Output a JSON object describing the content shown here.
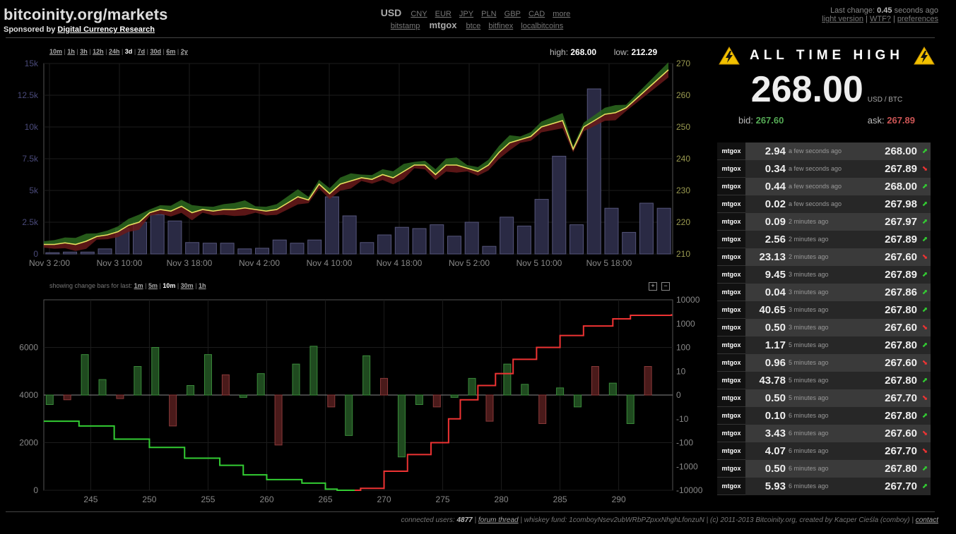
{
  "header": {
    "title": "bitcoinity.org/markets",
    "sponsor_prefix": "Sponsored by",
    "sponsor_link": "Digital Currency Research"
  },
  "currency": {
    "selected": "USD",
    "others": [
      "CNY",
      "EUR",
      "JPY",
      "PLN",
      "GBP",
      "CAD",
      "more"
    ],
    "exchanges": [
      "bitstamp",
      "mtgox",
      "btce",
      "bitfinex",
      "localbitcoins"
    ],
    "selected_exchange": "mtgox"
  },
  "status": {
    "last_change_label": "Last change:",
    "last_change_value": "0.45",
    "last_change_suffix": "seconds ago",
    "links": [
      "light version",
      "WTF?",
      "preferences"
    ]
  },
  "price_chart": {
    "ranges": [
      "10m",
      "1h",
      "3h",
      "12h",
      "24h",
      "3d",
      "7d",
      "30d",
      "6m",
      "2y"
    ],
    "selected_range": "3d",
    "high_label": "high:",
    "high_value": "268.00",
    "low_label": "low:",
    "low_value": "212.29"
  },
  "change_bars": {
    "label": "showing change bars for last:",
    "options": [
      "1m",
      "5m",
      "10m",
      "30m",
      "1h"
    ],
    "selected": "10m",
    "zoom_in": "+",
    "zoom_out": "−"
  },
  "chart_data": [
    {
      "type": "line",
      "x_ticks": [
        "Nov 3 2:00",
        "Nov 3 10:00",
        "Nov 3 18:00",
        "Nov 4 2:00",
        "Nov 4 10:00",
        "Nov 4 18:00",
        "Nov 5 2:00",
        "Nov 5 10:00",
        "Nov 5 18:00"
      ],
      "y_left_ticks": [
        "0",
        "2.5k",
        "5k",
        "7.5k",
        "10k",
        "12.5k",
        "15k"
      ],
      "y_right_ticks": [
        "210",
        "220",
        "230",
        "240",
        "250",
        "260",
        "270"
      ],
      "ylim_right": [
        210,
        270
      ],
      "ylim_left": [
        0,
        15000
      ],
      "grid": true,
      "series": [
        {
          "values": [
            213,
            213,
            213.5,
            213,
            214,
            215.5,
            216,
            217,
            219,
            220,
            223,
            224,
            223.5,
            225,
            223,
            224,
            223.5,
            224,
            224,
            224.5,
            224,
            223.5,
            224,
            226,
            228,
            227,
            232,
            229,
            232,
            233,
            234,
            233.5,
            235,
            234,
            236,
            238,
            238,
            235,
            238,
            238,
            237,
            236,
            238,
            242,
            245,
            246,
            247,
            250,
            251,
            252,
            243,
            250,
            252,
            254,
            254.5,
            256,
            259,
            262,
            265,
            268
          ]
        },
        {
          "values": [
            100,
            150,
            150,
            400,
            2000,
            2500,
            3100,
            2600,
            900,
            850,
            850,
            400,
            450,
            1100,
            850,
            1100,
            4500,
            3000,
            900,
            1500,
            2100,
            2000,
            2300,
            1400,
            2500,
            600,
            2900,
            2200,
            4300,
            7700,
            2300,
            13000,
            3600,
            1700,
            4000,
            3600
          ]
        }
      ]
    },
    {
      "type": "bar",
      "x_ticks": [
        "245",
        "250",
        "255",
        "260",
        "265",
        "270",
        "275",
        "280",
        "285",
        "290"
      ],
      "y_left_ticks": [
        "0",
        "2000",
        "4000",
        "6000"
      ],
      "y_right_ticks": [
        "10000",
        "1000",
        "100",
        "10",
        "0",
        "-10",
        "-100",
        "-1000",
        "-10000"
      ],
      "grid": true,
      "series": [
        {
          "x": [
            241.5,
            243,
            244.5,
            246,
            247.5,
            249,
            250.5,
            252,
            253.5,
            255,
            256.5,
            258,
            259.5,
            261,
            262.5,
            264,
            265.5,
            267,
            268.5,
            270,
            271.5,
            273,
            274.5,
            276,
            277.5,
            279,
            280.5,
            282,
            283.5,
            285,
            286.5,
            288,
            289.5,
            291,
            292.5
          ],
          "values": [
            -400,
            -200,
            1700,
            650,
            -150,
            1200,
            2000,
            -1300,
            400,
            1700,
            850,
            -100,
            900,
            -2100,
            1300,
            2050,
            -500,
            -1700,
            1650,
            700,
            -2600,
            -400,
            -500,
            -100,
            700,
            -1100,
            1300,
            450,
            -1200,
            300,
            -500,
            1200,
            500,
            -1200,
            1200
          ]
        },
        {
          "x": [
            241,
            244,
            247,
            250,
            253,
            256,
            258,
            260,
            263,
            265,
            266,
            267.5,
            268,
            270,
            272,
            274,
            275.5,
            276.5,
            278,
            279.5,
            281,
            283,
            285,
            287,
            289.5,
            291,
            294.5
          ],
          "values": [
            2900,
            2700,
            2150,
            1800,
            1350,
            1050,
            650,
            450,
            300,
            50,
            0,
            0,
            80,
            800,
            1500,
            2000,
            3000,
            3800,
            4400,
            4900,
            5500,
            6000,
            6500,
            6900,
            7200,
            7350,
            7400
          ]
        }
      ]
    }
  ],
  "all_time_high": {
    "heading": "ALL TIME HIGH",
    "price": "268.00",
    "unit": "USD / BTC",
    "bid_label": "bid:",
    "bid_value": "267.60",
    "ask_label": "ask:",
    "ask_value": "267.89",
    "accent_bid": "#5a5",
    "accent_ask": "#c55"
  },
  "trades": [
    {
      "exchange": "mtgox",
      "amount": "2.94",
      "time": "a few seconds ago",
      "price": "268.00",
      "direction": "up"
    },
    {
      "exchange": "mtgox",
      "amount": "0.34",
      "time": "a few seconds ago",
      "price": "267.89",
      "direction": "down"
    },
    {
      "exchange": "mtgox",
      "amount": "0.44",
      "time": "a few seconds ago",
      "price": "268.00",
      "direction": "up"
    },
    {
      "exchange": "mtgox",
      "amount": "0.02",
      "time": "a few seconds ago",
      "price": "267.98",
      "direction": "up"
    },
    {
      "exchange": "mtgox",
      "amount": "0.09",
      "time": "2 minutes ago",
      "price": "267.97",
      "direction": "up"
    },
    {
      "exchange": "mtgox",
      "amount": "2.56",
      "time": "2 minutes ago",
      "price": "267.89",
      "direction": "up"
    },
    {
      "exchange": "mtgox",
      "amount": "23.13",
      "time": "2 minutes ago",
      "price": "267.60",
      "direction": "down"
    },
    {
      "exchange": "mtgox",
      "amount": "9.45",
      "time": "3 minutes ago",
      "price": "267.89",
      "direction": "up"
    },
    {
      "exchange": "mtgox",
      "amount": "0.04",
      "time": "3 minutes ago",
      "price": "267.86",
      "direction": "up"
    },
    {
      "exchange": "mtgox",
      "amount": "40.65",
      "time": "3 minutes ago",
      "price": "267.80",
      "direction": "up"
    },
    {
      "exchange": "mtgox",
      "amount": "0.50",
      "time": "3 minutes ago",
      "price": "267.60",
      "direction": "down"
    },
    {
      "exchange": "mtgox",
      "amount": "1.17",
      "time": "5 minutes ago",
      "price": "267.80",
      "direction": "up"
    },
    {
      "exchange": "mtgox",
      "amount": "0.96",
      "time": "5 minutes ago",
      "price": "267.60",
      "direction": "down"
    },
    {
      "exchange": "mtgox",
      "amount": "43.78",
      "time": "5 minutes ago",
      "price": "267.80",
      "direction": "up"
    },
    {
      "exchange": "mtgox",
      "amount": "0.50",
      "time": "5 minutes ago",
      "price": "267.70",
      "direction": "down"
    },
    {
      "exchange": "mtgox",
      "amount": "0.10",
      "time": "6 minutes ago",
      "price": "267.80",
      "direction": "up"
    },
    {
      "exchange": "mtgox",
      "amount": "3.43",
      "time": "6 minutes ago",
      "price": "267.60",
      "direction": "down"
    },
    {
      "exchange": "mtgox",
      "amount": "4.07",
      "time": "6 minutes ago",
      "price": "267.70",
      "direction": "down"
    },
    {
      "exchange": "mtgox",
      "amount": "0.50",
      "time": "6 minutes ago",
      "price": "267.80",
      "direction": "up"
    },
    {
      "exchange": "mtgox",
      "amount": "5.93",
      "time": "6 minutes ago",
      "price": "267.70",
      "direction": "up"
    }
  ],
  "footer": {
    "users_label": "connected users:",
    "users_value": "4877",
    "forum_link": "forum thread",
    "whiskey_text": "whiskey fund: 1comboyNsev2ubWRbPZpxxNhghLfonzuN",
    "copyright": "(c) 2011-2013 Bitcoinity.org, created by Kacper Cieśla (comboy)",
    "contact_link": "contact"
  },
  "colors": {
    "up_green": "#33cc33",
    "down_red": "#ee3333",
    "price_line": "#e8e060",
    "ask_band": "#2d6a1f",
    "bid_band": "#6a1a1a",
    "volume_bar": "#2a2a44"
  }
}
